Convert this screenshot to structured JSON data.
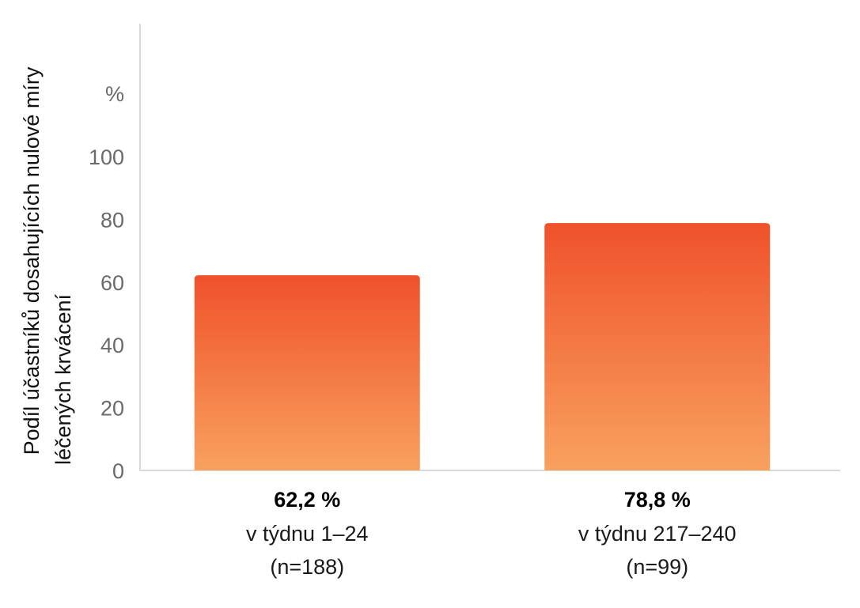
{
  "chart_data": {
    "type": "bar",
    "categories": [
      "v týdnu 1–24",
      "v týdnu 217–240"
    ],
    "values": [
      62.2,
      78.8
    ],
    "value_labels": [
      "62,2 %",
      "78,8 %"
    ],
    "sample_sizes": [
      "(n=188)",
      "(n=99)"
    ],
    "ylabel_lines": [
      "Podíl účastníků dosahujících nulové míry",
      "léčených krvácení"
    ],
    "y_unit": "%",
    "ylim": [
      0,
      100
    ],
    "yticks": [
      0,
      20,
      40,
      60,
      80,
      100
    ],
    "grid": false,
    "colors": {
      "bar_top": "#f0512b",
      "bar_bottom": "#f8a15e",
      "axis": "#d9d9d9"
    }
  }
}
